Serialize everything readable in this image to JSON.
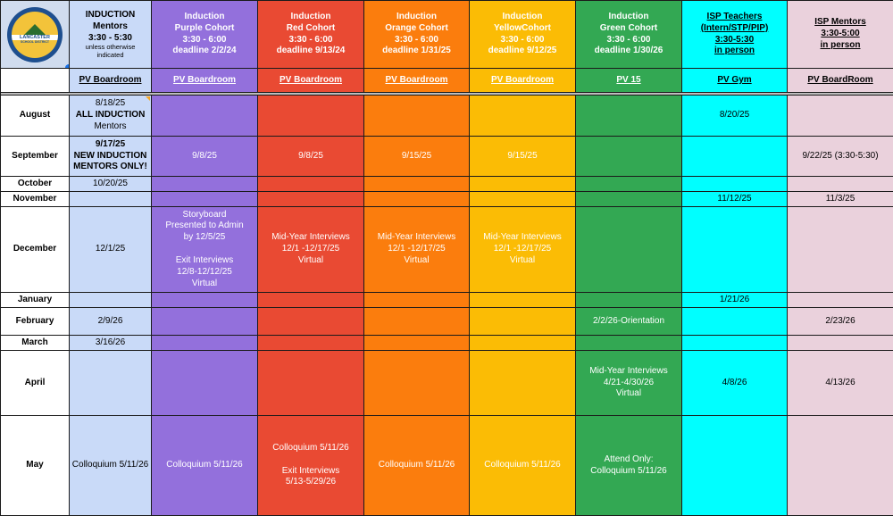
{
  "colors": {
    "mentor": "#c9daf8",
    "purple": "#9370dc",
    "red": "#e94a33",
    "orange": "#fb7d0d",
    "yellow": "#fbbc05",
    "green": "#33a853",
    "cyan": "#00ffff",
    "pink": "#ead1dc"
  },
  "logo": {
    "icon": "lancaster-school-district-logo",
    "top_text": "INDUCTION",
    "name": "LANCASTER",
    "sub": "SCHOOL DISTRICT"
  },
  "headers": {
    "mentors": {
      "title": "INDUCTION",
      "line2": "Mentors",
      "line3": "3:30 - 5:30",
      "note": "unless otherwise indicated"
    },
    "purple": {
      "line1": "Induction",
      "line2": "Purple Cohort",
      "line3": "3:30 - 6:00",
      "line4": "deadline 2/2/24"
    },
    "red": {
      "line1": "Induction",
      "line2": "Red Cohort",
      "line3": "3:30 - 6:00",
      "line4": "deadline 9/13/24"
    },
    "orange": {
      "line1": "Induction",
      "line2": "Orange Cohort",
      "line3": "3:30 - 6:00",
      "line4": "deadline 1/31/25"
    },
    "yellow": {
      "line1": "Induction",
      "line2": "YellowCohort",
      "line3": "3:30 - 6:00",
      "line4": "deadline 9/12/25"
    },
    "green": {
      "line1": "Induction",
      "line2": "Green Cohort",
      "line3": "3:30 - 6:00",
      "line4": "deadline 1/30/26"
    },
    "isp_teachers": {
      "line1": "ISP Teachers",
      "line2": "(Intern/STP/PIP)",
      "line3": "3:30-5:30",
      "line4": "in person"
    },
    "isp_mentors": {
      "line1": "ISP Mentors",
      "line2": "3:30-5:00",
      "line3": "in person"
    }
  },
  "locations": [
    "PV Boardroom",
    "PV Boardroom",
    "PV Boardroom",
    "PV Boardroom",
    "PV Boardroom",
    "PV 15",
    "PV Gym",
    "PV BoardRoom"
  ],
  "months": {
    "august": "August",
    "september": "September",
    "october": "October",
    "november": "November",
    "december": "December",
    "january": "January",
    "february": "February",
    "march": "March",
    "april": "April",
    "may": "May"
  },
  "cells": {
    "aug_mentor": [
      "8/18/25",
      "ALL INDUCTION",
      "Mentors"
    ],
    "aug_isp_teachers": "8/20/25",
    "sep_mentor": [
      "9/17/25",
      "NEW INDUCTION",
      "MENTORS ONLY!"
    ],
    "sep_purple": "9/8/25",
    "sep_red": "9/8/25",
    "sep_orange": "9/15/25",
    "sep_yellow": "9/15/25",
    "sep_isp_mentors": "9/22/25 (3:30-5:30)",
    "oct_mentor": "10/20/25",
    "nov_isp_teachers": "11/12/25",
    "nov_isp_mentors": "11/3/25",
    "dec_mentor": "12/1/25",
    "dec_purple": [
      "Storyboard",
      "Presented to Admin",
      "by 12/5/25",
      "",
      "Exit Interviews",
      "12/8-12/12/25",
      "Virtual"
    ],
    "dec_red": [
      "Mid-Year Interviews",
      "12/1 -12/17/25",
      "Virtual"
    ],
    "dec_orange": [
      "Mid-Year Interviews",
      "12/1 -12/17/25",
      "Virtual"
    ],
    "dec_yellow": [
      "Mid-Year Interviews",
      "12/1 -12/17/25",
      "Virtual"
    ],
    "jan_isp_teachers": "1/21/26",
    "feb_mentor": "2/9/26",
    "feb_green": "2/2/26-Orientation",
    "feb_isp_mentors": "2/23/26",
    "mar_mentor": "3/16/26",
    "apr_green": [
      "Mid-Year Interviews",
      "4/21-4/30/26",
      "Virtual"
    ],
    "apr_isp_teachers": "4/8/26",
    "apr_isp_mentors": "4/13/26",
    "may_mentor": "Colloquium 5/11/26",
    "may_purple": "Colloquium 5/11/26",
    "may_red": [
      "Colloquium 5/11/26",
      "",
      "Exit Interviews",
      "5/13-5/29/26"
    ],
    "may_orange": "Colloquium 5/11/26",
    "may_yellow": "Colloquium 5/11/26",
    "may_green": [
      "Attend Only:",
      "Colloquium 5/11/26"
    ]
  }
}
